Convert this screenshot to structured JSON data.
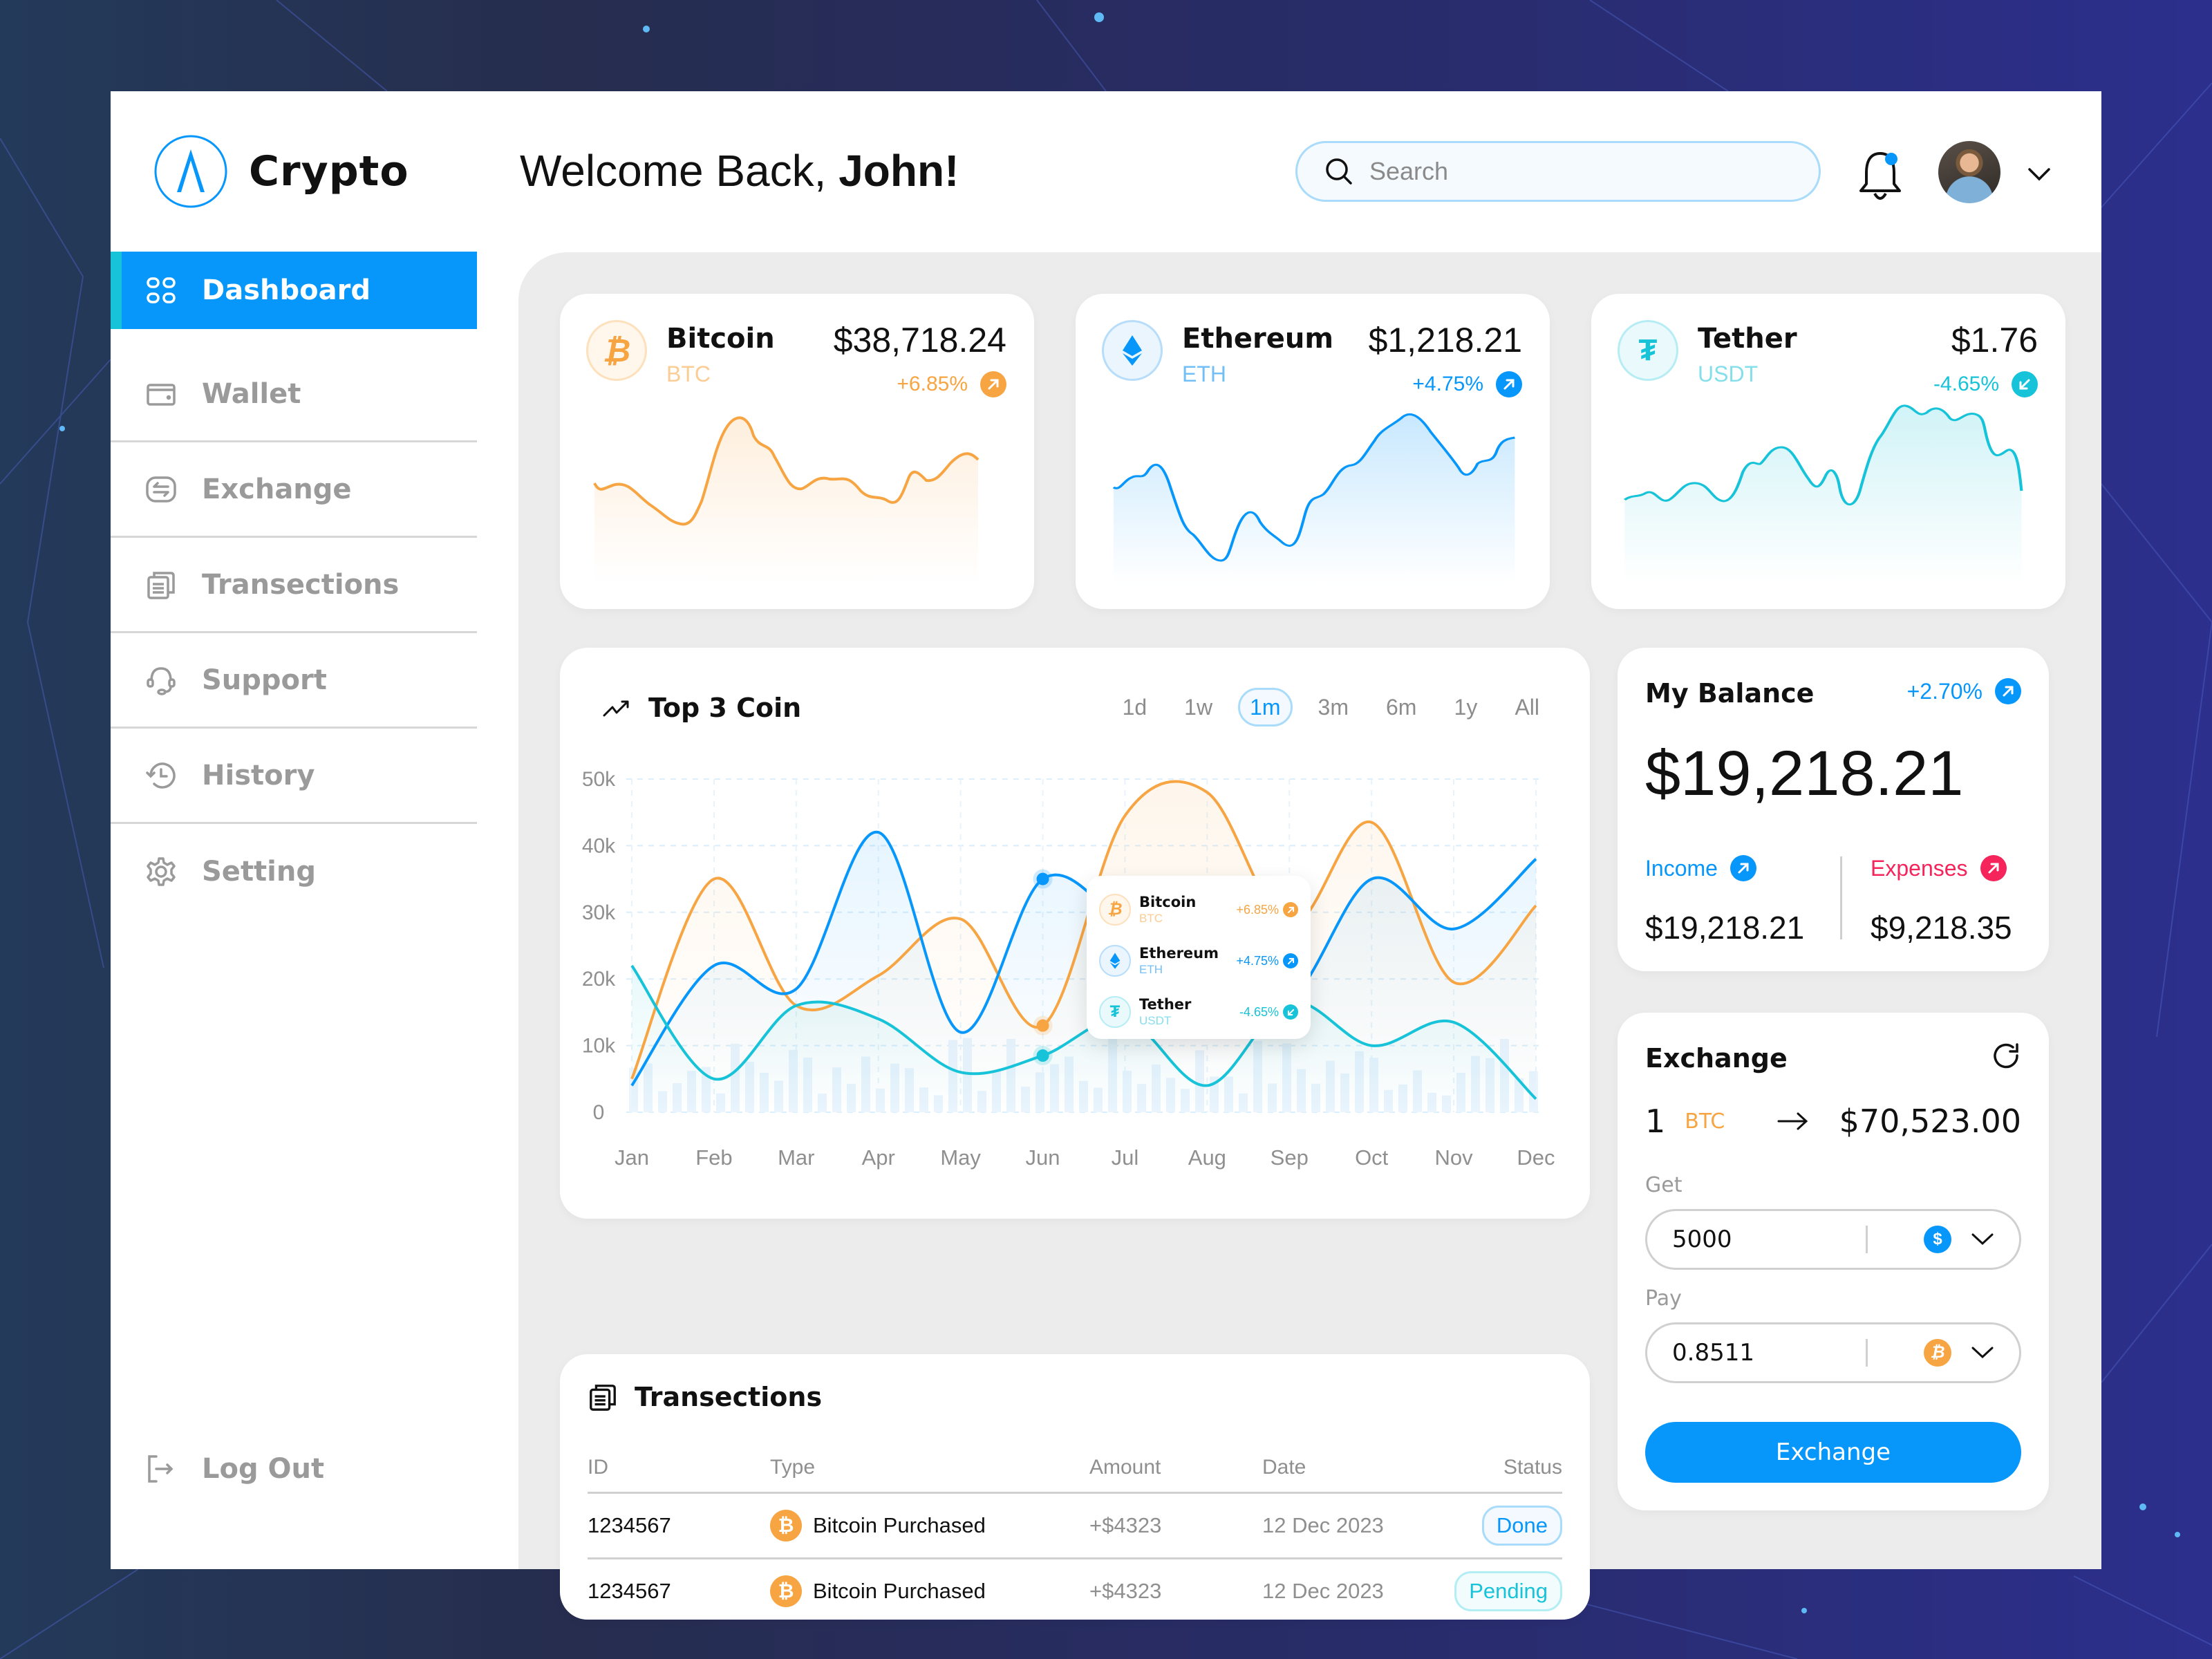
{
  "app": {
    "name": "Crypto",
    "welcome_prefix": "Welcome Back, ",
    "welcome_name": "John!"
  },
  "header": {
    "search": {
      "placeholder": "Search",
      "value": ""
    },
    "notification_dot": true
  },
  "sidebar": {
    "items": [
      {
        "label": "Dashboard",
        "icon": "grid-icon",
        "active": true
      },
      {
        "label": "Wallet",
        "icon": "wallet-icon"
      },
      {
        "label": "Exchange",
        "icon": "exchange-icon"
      },
      {
        "label": "Transections",
        "icon": "clipboard-icon"
      },
      {
        "label": "Support",
        "icon": "headset-icon"
      },
      {
        "label": "History",
        "icon": "history-icon"
      },
      {
        "label": "Setting",
        "icon": "gear-icon"
      }
    ],
    "logout_label": "Log Out"
  },
  "coins": [
    {
      "name": "Bitcoin",
      "symbol": "BTC",
      "price": "$38,718.24",
      "change": "+6.85%",
      "direction": "up",
      "color": "#f7a543"
    },
    {
      "name": "Ethereum",
      "symbol": "ETH",
      "price": "$1,218.21",
      "change": "+4.75%",
      "direction": "up",
      "color": "#0797fb"
    },
    {
      "name": "Tether",
      "symbol": "USDT",
      "price": "$1.76",
      "change": "-4.65%",
      "direction": "down",
      "color": "#17c3d8"
    }
  ],
  "top_coin": {
    "title": "Top 3 Coin",
    "ranges": [
      "1d",
      "1w",
      "1m",
      "3m",
      "6m",
      "1y",
      "All"
    ],
    "active_range": "1m"
  },
  "chart_data": {
    "type": "line",
    "title": "Top 3 Coin",
    "categories": [
      "Jan",
      "Feb",
      "Mar",
      "Apr",
      "May",
      "Jun",
      "Jul",
      "Aug",
      "Sep",
      "Oct",
      "Nov",
      "Dec"
    ],
    "y_ticks": [
      "0",
      "10k",
      "20k",
      "30k",
      "40k",
      "50k"
    ],
    "ylim": [
      0,
      50000
    ],
    "grid": true,
    "series": [
      {
        "name": "Bitcoin",
        "color": "#f7a543",
        "values": [
          5000,
          35000,
          16000,
          20500,
          29000,
          13000,
          44500,
          48000,
          28000,
          43500,
          19500,
          31000
        ]
      },
      {
        "name": "Ethereum",
        "color": "#0797fb",
        "values": [
          4000,
          22000,
          18500,
          42000,
          12000,
          35000,
          28500,
          22000,
          17000,
          35000,
          27500,
          38000
        ]
      },
      {
        "name": "Tether",
        "color": "#17c3d8",
        "values": [
          22000,
          5000,
          16000,
          14000,
          6000,
          8500,
          14000,
          4000,
          16500,
          10000,
          13500,
          2000
        ]
      }
    ],
    "highlight": {
      "x": "Jun",
      "values": {
        "Bitcoin": 13000,
        "Ethereum": 35000,
        "Tether": 8500
      }
    },
    "tooltip": [
      {
        "name": "Bitcoin",
        "symbol": "BTC",
        "change": "+6.85%"
      },
      {
        "name": "Ethereum",
        "symbol": "ETH",
        "change": "+4.75%"
      },
      {
        "name": "Tether",
        "symbol": "USDT",
        "change": "-4.65%"
      }
    ]
  },
  "transactions": {
    "title": "Transections",
    "columns": [
      "ID",
      "Type",
      "Amount",
      "Date",
      "Status"
    ],
    "rows": [
      {
        "id": "1234567",
        "type": "Bitcoin Purchased",
        "amount": "+$4323",
        "date": "12 Dec 2023",
        "status": "Done"
      },
      {
        "id": "1234567",
        "type": "Bitcoin Purchased",
        "amount": "+$4323",
        "date": "12 Dec 2023",
        "status": "Pending"
      }
    ]
  },
  "balance": {
    "title": "My Balance",
    "change": "+2.70%",
    "amount": "$19,218.21",
    "income_label": "Income",
    "income_value": "$19,218.21",
    "expenses_label": "Expenses",
    "expenses_value": "$9,218.35"
  },
  "exchange": {
    "title": "Exchange",
    "rate_qty": "1",
    "rate_symbol": "BTC",
    "rate_value": "$70,523.00",
    "get_label": "Get",
    "get_value": "5000",
    "get_currency": "USD",
    "pay_label": "Pay",
    "pay_value": "0.8511",
    "pay_currency": "BTC",
    "button_label": "Exchange"
  },
  "colors": {
    "accent": "#0797fb",
    "bitcoin": "#f7a543",
    "tether": "#17c3d8",
    "expense": "#f5245a",
    "panel": "#ececec"
  }
}
